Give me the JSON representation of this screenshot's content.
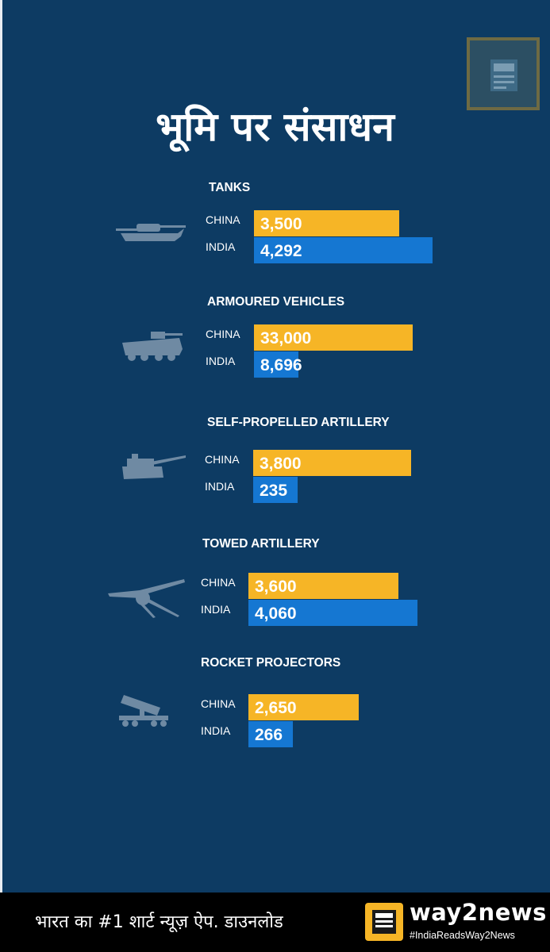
{
  "title": "भूमि पर संसाधन",
  "footer": {
    "text": "भारत का #1 शार्ट न्यूज़ ऐप. डाउनलोड",
    "logo_name": "way2news",
    "logo_tag": "#IndiaReadsWay2News"
  },
  "colors": {
    "background": "#0d3b63",
    "china": "#f6b526",
    "india": "#1577d2",
    "footer": "#000000"
  },
  "chart_data": {
    "type": "bar",
    "orientation": "horizontal",
    "title": "भूमि पर संसाधन",
    "groups": [
      {
        "name": "TANKS",
        "icon": "tank-icon",
        "series": [
          {
            "name": "CHINA",
            "value": 3500,
            "label": "3,500"
          },
          {
            "name": "INDIA",
            "value": 4292,
            "label": "4,292"
          }
        ]
      },
      {
        "name": "ARMOURED VEHICLES",
        "icon": "armoured-vehicle-icon",
        "series": [
          {
            "name": "CHINA",
            "value": 33000,
            "label": "33,000"
          },
          {
            "name": "INDIA",
            "value": 8696,
            "label": "8,696"
          }
        ]
      },
      {
        "name": "SELF-PROPELLED ARTILLERY",
        "icon": "self-propelled-artillery-icon",
        "series": [
          {
            "name": "CHINA",
            "value": 3800,
            "label": "3,800"
          },
          {
            "name": "INDIA",
            "value": 235,
            "label": "235"
          }
        ]
      },
      {
        "name": "TOWED ARTILLERY",
        "icon": "towed-artillery-icon",
        "series": [
          {
            "name": "CHINA",
            "value": 3600,
            "label": "3,600"
          },
          {
            "name": "INDIA",
            "value": 4060,
            "label": "4,060"
          }
        ]
      },
      {
        "name": "ROCKET PROJECTORS",
        "icon": "rocket-projector-icon",
        "series": [
          {
            "name": "CHINA",
            "value": 2650,
            "label": "2,650"
          },
          {
            "name": "INDIA",
            "value": 266,
            "label": "266"
          }
        ]
      }
    ]
  }
}
